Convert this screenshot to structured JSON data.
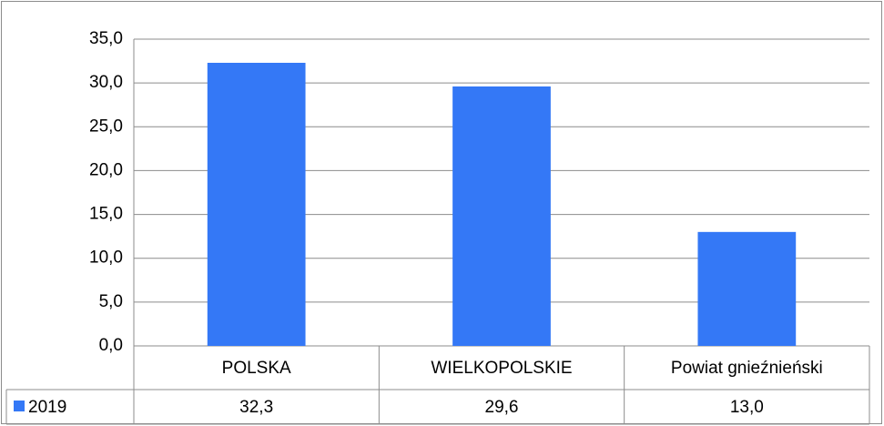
{
  "chart_data": {
    "type": "bar",
    "categories": [
      "POLSKA",
      "WIELKOPOLSKIE",
      "Powiat gnieźnieński"
    ],
    "series": [
      {
        "name": "2019",
        "color": "#3478f6",
        "values": [
          32.3,
          29.6,
          13.0
        ],
        "value_labels": [
          "32,3",
          "29,6",
          "13,0"
        ]
      }
    ],
    "ylim": [
      0,
      35
    ],
    "yticks": [
      {
        "value": 0,
        "label": "0,0"
      },
      {
        "value": 5,
        "label": "5,0"
      },
      {
        "value": 10,
        "label": "10,0"
      },
      {
        "value": 15,
        "label": "15,0"
      },
      {
        "value": 20,
        "label": "20,0"
      },
      {
        "value": 25,
        "label": "25,0"
      },
      {
        "value": 30,
        "label": "30,0"
      },
      {
        "value": 35,
        "label": "35,0"
      }
    ],
    "grid": true
  }
}
